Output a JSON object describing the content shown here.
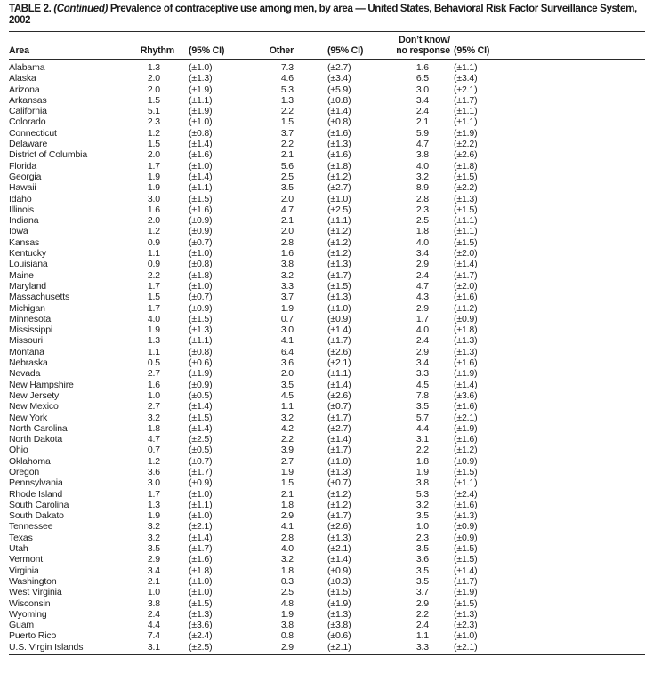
{
  "title": {
    "prefix": "TABLE 2. ",
    "continued": "(Continued)",
    "rest": " Prevalence of contraceptive use among men, by area — United States, Behavioral Risk Factor Surveillance System, 2002"
  },
  "header": {
    "area": "Area",
    "rhythm": "Rhythm",
    "ci1": "(95% CI)",
    "other": "Other",
    "ci2": "(95% CI)",
    "dk_line1": "Don’t know/",
    "dk_line2": "no response",
    "ci3": "(95% CI)"
  },
  "rows": [
    {
      "area": "Alabama",
      "rhythm": "1.3",
      "rhythm_ci": "(±1.0)",
      "other": "7.3",
      "other_ci": "(±2.7)",
      "dk": "1.6",
      "dk_ci": "(±1.1)"
    },
    {
      "area": "Alaska",
      "rhythm": "2.0",
      "rhythm_ci": "(±1.3)",
      "other": "4.6",
      "other_ci": "(±3.4)",
      "dk": "6.5",
      "dk_ci": "(±3.4)"
    },
    {
      "area": "Arizona",
      "rhythm": "2.0",
      "rhythm_ci": "(±1.9)",
      "other": "5.3",
      "other_ci": "(±5.9)",
      "dk": "3.0",
      "dk_ci": "(±2.1)"
    },
    {
      "area": "Arkansas",
      "rhythm": "1.5",
      "rhythm_ci": "(±1.1)",
      "other": "1.3",
      "other_ci": "(±0.8)",
      "dk": "3.4",
      "dk_ci": "(±1.7)"
    },
    {
      "area": "California",
      "rhythm": "5.1",
      "rhythm_ci": "(±1.9)",
      "other": "2.2",
      "other_ci": "(±1.4)",
      "dk": "2.4",
      "dk_ci": "(±1.1)"
    },
    {
      "area": "Colorado",
      "rhythm": "2.3",
      "rhythm_ci": "(±1.0)",
      "other": "1.5",
      "other_ci": "(±0.8)",
      "dk": "2.1",
      "dk_ci": "(±1.1)"
    },
    {
      "area": "Connecticut",
      "rhythm": "1.2",
      "rhythm_ci": "(±0.8)",
      "other": "3.7",
      "other_ci": "(±1.6)",
      "dk": "5.9",
      "dk_ci": "(±1.9)"
    },
    {
      "area": "Delaware",
      "rhythm": "1.5",
      "rhythm_ci": "(±1.4)",
      "other": "2.2",
      "other_ci": "(±1.3)",
      "dk": "4.7",
      "dk_ci": "(±2.2)"
    },
    {
      "area": "District of Columbia",
      "rhythm": "2.0",
      "rhythm_ci": "(±1.6)",
      "other": "2.1",
      "other_ci": "(±1.6)",
      "dk": "3.8",
      "dk_ci": "(±2.6)"
    },
    {
      "area": "Florida",
      "rhythm": "1.7",
      "rhythm_ci": "(±1.0)",
      "other": "5.6",
      "other_ci": "(±1.8)",
      "dk": "4.0",
      "dk_ci": "(±1.8)"
    },
    {
      "area": "Georgia",
      "rhythm": "1.9",
      "rhythm_ci": "(±1.4)",
      "other": "2.5",
      "other_ci": "(±1.2)",
      "dk": "3.2",
      "dk_ci": "(±1.5)"
    },
    {
      "area": "Hawaii",
      "rhythm": "1.9",
      "rhythm_ci": "(±1.1)",
      "other": "3.5",
      "other_ci": "(±2.7)",
      "dk": "8.9",
      "dk_ci": "(±2.2)"
    },
    {
      "area": "Idaho",
      "rhythm": "3.0",
      "rhythm_ci": "(±1.5)",
      "other": "2.0",
      "other_ci": "(±1.0)",
      "dk": "2.8",
      "dk_ci": "(±1.3)"
    },
    {
      "area": "Illinois",
      "rhythm": "1.6",
      "rhythm_ci": "(±1.6)",
      "other": "4.7",
      "other_ci": "(±2.5)",
      "dk": "2.3",
      "dk_ci": "(±1.5)"
    },
    {
      "area": "Indiana",
      "rhythm": "2.0",
      "rhythm_ci": "(±0.9)",
      "other": "2.1",
      "other_ci": "(±1.1)",
      "dk": "2.5",
      "dk_ci": "(±1.1)"
    },
    {
      "area": "Iowa",
      "rhythm": "1.2",
      "rhythm_ci": "(±0.9)",
      "other": "2.0",
      "other_ci": "(±1.2)",
      "dk": "1.8",
      "dk_ci": "(±1.1)"
    },
    {
      "area": "Kansas",
      "rhythm": "0.9",
      "rhythm_ci": "(±0.7)",
      "other": "2.8",
      "other_ci": "(±1.2)",
      "dk": "4.0",
      "dk_ci": "(±1.5)"
    },
    {
      "area": "Kentucky",
      "rhythm": "1.1",
      "rhythm_ci": "(±1.0)",
      "other": "1.6",
      "other_ci": "(±1.2)",
      "dk": "3.4",
      "dk_ci": "(±2.0)"
    },
    {
      "area": "Louisiana",
      "rhythm": "0.9",
      "rhythm_ci": "(±0.8)",
      "other": "3.8",
      "other_ci": "(±1.3)",
      "dk": "2.9",
      "dk_ci": "(±1.4)"
    },
    {
      "area": "Maine",
      "rhythm": "2.2",
      "rhythm_ci": "(±1.8)",
      "other": "3.2",
      "other_ci": "(±1.7)",
      "dk": "2.4",
      "dk_ci": "(±1.7)"
    },
    {
      "area": "Maryland",
      "rhythm": "1.7",
      "rhythm_ci": "(±1.0)",
      "other": "3.3",
      "other_ci": "(±1.5)",
      "dk": "4.7",
      "dk_ci": "(±2.0)"
    },
    {
      "area": "Massachusetts",
      "rhythm": "1.5",
      "rhythm_ci": "(±0.7)",
      "other": "3.7",
      "other_ci": "(±1.3)",
      "dk": "4.3",
      "dk_ci": "(±1.6)"
    },
    {
      "area": "Michigan",
      "rhythm": "1.7",
      "rhythm_ci": "(±0.9)",
      "other": "1.9",
      "other_ci": "(±1.0)",
      "dk": "2.9",
      "dk_ci": "(±1.2)"
    },
    {
      "area": "Minnesota",
      "rhythm": "4.0",
      "rhythm_ci": "(±1.5)",
      "other": "0.7",
      "other_ci": "(±0.9)",
      "dk": "1.7",
      "dk_ci": "(±0.9)"
    },
    {
      "area": "Mississippi",
      "rhythm": "1.9",
      "rhythm_ci": "(±1.3)",
      "other": "3.0",
      "other_ci": "(±1.4)",
      "dk": "4.0",
      "dk_ci": "(±1.8)"
    },
    {
      "area": "Missouri",
      "rhythm": "1.3",
      "rhythm_ci": "(±1.1)",
      "other": "4.1",
      "other_ci": "(±1.7)",
      "dk": "2.4",
      "dk_ci": "(±1.3)"
    },
    {
      "area": "Montana",
      "rhythm": "1.1",
      "rhythm_ci": "(±0.8)",
      "other": "6.4",
      "other_ci": "(±2.6)",
      "dk": "2.9",
      "dk_ci": "(±1.3)"
    },
    {
      "area": "Nebraska",
      "rhythm": "0.5",
      "rhythm_ci": "(±0.6)",
      "other": "3.6",
      "other_ci": "(±2.1)",
      "dk": "3.4",
      "dk_ci": "(±1.6)"
    },
    {
      "area": "Nevada",
      "rhythm": "2.7",
      "rhythm_ci": "(±1.9)",
      "other": "2.0",
      "other_ci": "(±1.1)",
      "dk": "3.3",
      "dk_ci": "(±1.9)"
    },
    {
      "area": "New Hampshire",
      "rhythm": "1.6",
      "rhythm_ci": "(±0.9)",
      "other": "3.5",
      "other_ci": "(±1.4)",
      "dk": "4.5",
      "dk_ci": "(±1.4)"
    },
    {
      "area": "New Jersety",
      "rhythm": "1.0",
      "rhythm_ci": "(±0.5)",
      "other": "4.5",
      "other_ci": "(±2.6)",
      "dk": "7.8",
      "dk_ci": "(±3.6)"
    },
    {
      "area": "New Mexico",
      "rhythm": "2.7",
      "rhythm_ci": "(±1.4)",
      "other": "1.1",
      "other_ci": "(±0.7)",
      "dk": "3.5",
      "dk_ci": "(±1.6)"
    },
    {
      "area": "New York",
      "rhythm": "3.2",
      "rhythm_ci": "(±1.5)",
      "other": "3.2",
      "other_ci": "(±1.7)",
      "dk": "5.7",
      "dk_ci": "(±2.1)"
    },
    {
      "area": "North Carolina",
      "rhythm": "1.8",
      "rhythm_ci": "(±1.4)",
      "other": "4.2",
      "other_ci": "(±2.7)",
      "dk": "4.4",
      "dk_ci": "(±1.9)"
    },
    {
      "area": "North Dakota",
      "rhythm": "4.7",
      "rhythm_ci": "(±2.5)",
      "other": "2.2",
      "other_ci": "(±1.4)",
      "dk": "3.1",
      "dk_ci": "(±1.6)"
    },
    {
      "area": "Ohio",
      "rhythm": "0.7",
      "rhythm_ci": "(±0.5)",
      "other": "3.9",
      "other_ci": "(±1.7)",
      "dk": "2.2",
      "dk_ci": "(±1.2)"
    },
    {
      "area": "Oklahoma",
      "rhythm": "1.2",
      "rhythm_ci": "(±0.7)",
      "other": "2.7",
      "other_ci": "(±1.0)",
      "dk": "1.8",
      "dk_ci": "(±0.9)"
    },
    {
      "area": "Oregon",
      "rhythm": "3.6",
      "rhythm_ci": "(±1.7)",
      "other": "1.9",
      "other_ci": "(±1.3)",
      "dk": "1.9",
      "dk_ci": "(±1.5)"
    },
    {
      "area": "Pennsylvania",
      "rhythm": "3.0",
      "rhythm_ci": "(±0.9)",
      "other": "1.5",
      "other_ci": "(±0.7)",
      "dk": "3.8",
      "dk_ci": "(±1.1)"
    },
    {
      "area": "Rhode Island",
      "rhythm": "1.7",
      "rhythm_ci": "(±1.0)",
      "other": "2.1",
      "other_ci": "(±1.2)",
      "dk": "5.3",
      "dk_ci": "(±2.4)"
    },
    {
      "area": "South Carolina",
      "rhythm": "1.3",
      "rhythm_ci": "(±1.1)",
      "other": "1.8",
      "other_ci": "(±1.2)",
      "dk": "3.2",
      "dk_ci": "(±1.6)"
    },
    {
      "area": "South Dakato",
      "rhythm": "1.9",
      "rhythm_ci": "(±1.0)",
      "other": "2.9",
      "other_ci": "(±1.7)",
      "dk": "3.5",
      "dk_ci": "(±1.3)"
    },
    {
      "area": "Tennessee",
      "rhythm": "3.2",
      "rhythm_ci": "(±2.1)",
      "other": "4.1",
      "other_ci": "(±2.6)",
      "dk": "1.0",
      "dk_ci": "(±0.9)"
    },
    {
      "area": "Texas",
      "rhythm": "3.2",
      "rhythm_ci": "(±1.4)",
      "other": "2.8",
      "other_ci": "(±1.3)",
      "dk": "2.3",
      "dk_ci": "(±0.9)"
    },
    {
      "area": "Utah",
      "rhythm": "3.5",
      "rhythm_ci": "(±1.7)",
      "other": "4.0",
      "other_ci": "(±2.1)",
      "dk": "3.5",
      "dk_ci": "(±1.5)"
    },
    {
      "area": "Vermont",
      "rhythm": "2.9",
      "rhythm_ci": "(±1.6)",
      "other": "3.2",
      "other_ci": "(±1.4)",
      "dk": "3.6",
      "dk_ci": "(±1.5)"
    },
    {
      "area": "Virginia",
      "rhythm": "3.4",
      "rhythm_ci": "(±1.8)",
      "other": "1.8",
      "other_ci": "(±0.9)",
      "dk": "3.5",
      "dk_ci": "(±1.4)"
    },
    {
      "area": "Washington",
      "rhythm": "2.1",
      "rhythm_ci": "(±1.0)",
      "other": "0.3",
      "other_ci": "(±0.3)",
      "dk": "3.5",
      "dk_ci": "(±1.7)"
    },
    {
      "area": "West Virginia",
      "rhythm": "1.0",
      "rhythm_ci": "(±1.0)",
      "other": "2.5",
      "other_ci": "(±1.5)",
      "dk": "3.7",
      "dk_ci": "(±1.9)"
    },
    {
      "area": "Wisconsin",
      "rhythm": "3.8",
      "rhythm_ci": "(±1.5)",
      "other": "4.8",
      "other_ci": "(±1.9)",
      "dk": "2.9",
      "dk_ci": "(±1.5)"
    },
    {
      "area": "Wyoming",
      "rhythm": "2.4",
      "rhythm_ci": "(±1.3)",
      "other": "1.9",
      "other_ci": "(±1.3)",
      "dk": "2.2",
      "dk_ci": "(±1.3)"
    },
    {
      "area": "Guam",
      "rhythm": "4.4",
      "rhythm_ci": "(±3.6)",
      "other": "3.8",
      "other_ci": "(±3.8)",
      "dk": "2.4",
      "dk_ci": "(±2.3)"
    },
    {
      "area": "Puerto Rico",
      "rhythm": "7.4",
      "rhythm_ci": "(±2.4)",
      "other": "0.8",
      "other_ci": "(±0.6)",
      "dk": "1.1",
      "dk_ci": "(±1.0)"
    },
    {
      "area": "U.S. Virgin Islands",
      "rhythm": "3.1",
      "rhythm_ci": "(±2.5)",
      "other": "2.9",
      "other_ci": "(±2.1)",
      "dk": "3.3",
      "dk_ci": "(±2.1)"
    }
  ]
}
